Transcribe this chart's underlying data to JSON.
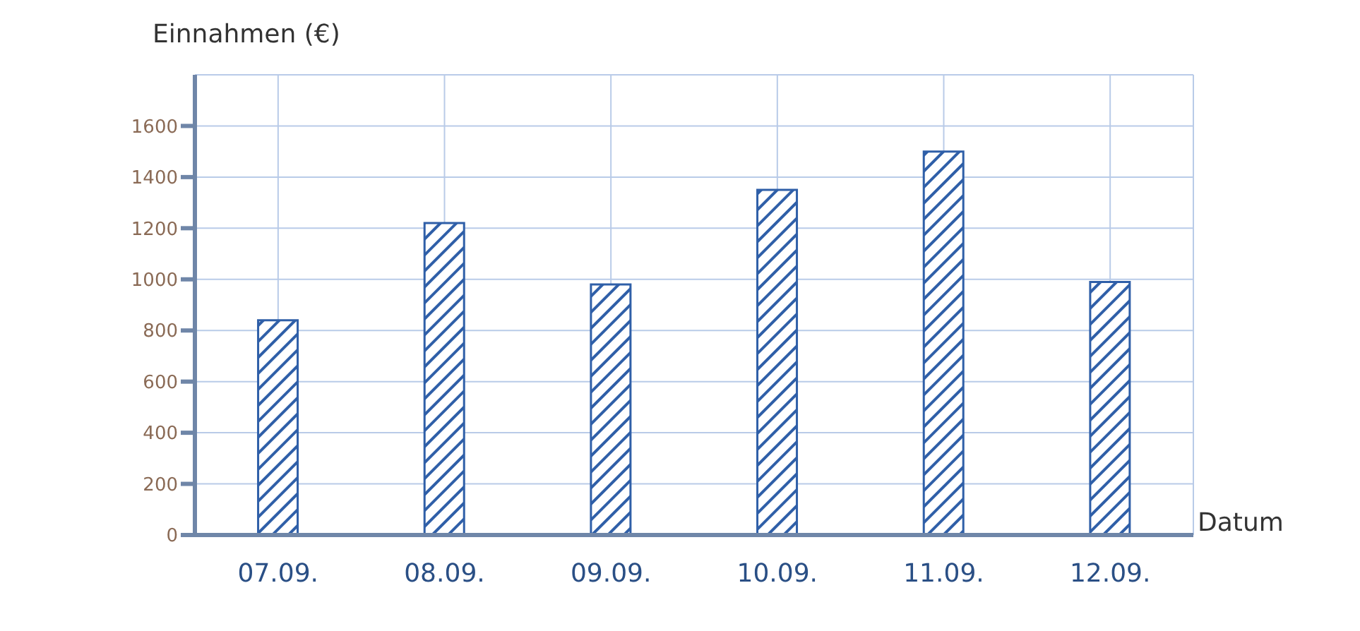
{
  "chart_data": {
    "type": "bar",
    "xlabel": "Datum",
    "ylabel": "Einnahmen (€)",
    "categories": [
      "07.09.",
      "08.09.",
      "09.09.",
      "10.09.",
      "11.09.",
      "12.09."
    ],
    "values": [
      840,
      1220,
      980,
      1350,
      1500,
      990
    ],
    "color": "#2f5fa8",
    "ylim": [
      0,
      1800
    ],
    "yticks": [
      0,
      200,
      400,
      600,
      800,
      1000,
      1200,
      1400,
      1600
    ],
    "grid": true
  }
}
